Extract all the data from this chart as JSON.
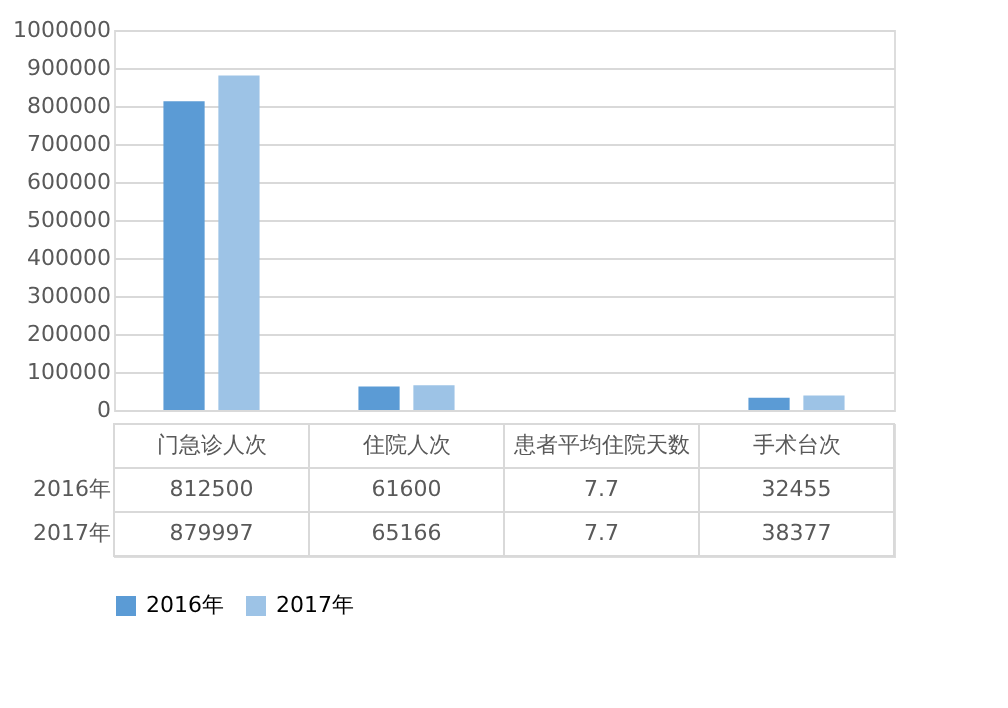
{
  "chart_data": {
    "type": "bar",
    "categories": [
      "门急诊人次",
      "住院人次",
      "患者平均住院天数",
      "手术台次"
    ],
    "series": [
      {
        "name": "2016年",
        "color": "#5b9bd5",
        "values": [
          812500,
          61600,
          7.7,
          32455
        ]
      },
      {
        "name": "2017年",
        "color": "#9dc3e6",
        "values": [
          879997,
          65166,
          7.7,
          38377
        ]
      }
    ],
    "ylim": [
      0,
      1000000
    ],
    "yticks": [
      0,
      100000,
      200000,
      300000,
      400000,
      500000,
      600000,
      700000,
      800000,
      900000,
      1000000
    ],
    "grid": "y",
    "legend": "bottom",
    "data_labels": true
  }
}
